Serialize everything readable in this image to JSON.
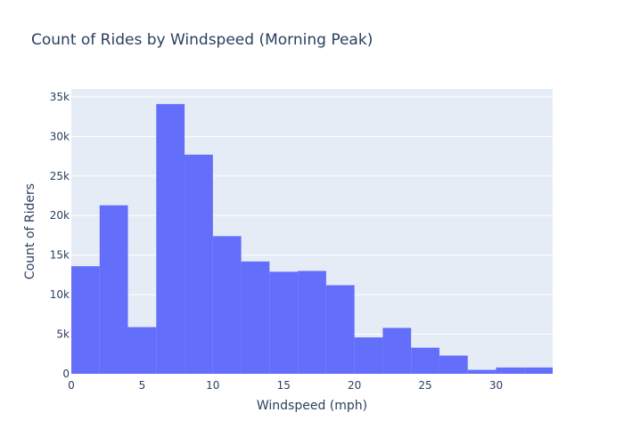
{
  "chart_data": {
    "type": "bar",
    "title": "Count of Rides by Windspeed (Morning Peak)",
    "xlabel": "Windspeed (mph)",
    "ylabel": "Count of Riders",
    "xlim": [
      0,
      34
    ],
    "ylim": [
      0,
      36000
    ],
    "bin_width": 2,
    "grid": true,
    "bins": [
      {
        "start": 0,
        "end": 2,
        "value": 13600
      },
      {
        "start": 2,
        "end": 4,
        "value": 21300
      },
      {
        "start": 4,
        "end": 6,
        "value": 5900
      },
      {
        "start": 6,
        "end": 8,
        "value": 34100
      },
      {
        "start": 8,
        "end": 10,
        "value": 27700
      },
      {
        "start": 10,
        "end": 12,
        "value": 17400
      },
      {
        "start": 12,
        "end": 14,
        "value": 14200
      },
      {
        "start": 14,
        "end": 16,
        "value": 12900
      },
      {
        "start": 16,
        "end": 18,
        "value": 13000
      },
      {
        "start": 18,
        "end": 20,
        "value": 11200
      },
      {
        "start": 20,
        "end": 22,
        "value": 4600
      },
      {
        "start": 22,
        "end": 24,
        "value": 5800
      },
      {
        "start": 24,
        "end": 26,
        "value": 3300
      },
      {
        "start": 26,
        "end": 28,
        "value": 2300
      },
      {
        "start": 28,
        "end": 30,
        "value": 500
      },
      {
        "start": 30,
        "end": 32,
        "value": 800
      },
      {
        "start": 32,
        "end": 34,
        "value": 800
      }
    ],
    "x_ticks": [
      0,
      5,
      10,
      15,
      20,
      25,
      30
    ],
    "x_tick_labels": [
      "0",
      "5",
      "10",
      "15",
      "20",
      "25",
      "30"
    ],
    "y_ticks": [
      0,
      5000,
      10000,
      15000,
      20000,
      25000,
      30000,
      35000
    ],
    "y_tick_labels": [
      "0",
      "5k",
      "10k",
      "15k",
      "20k",
      "25k",
      "30k",
      "35k"
    ],
    "colors": {
      "bar": "#636efa",
      "plot_background": "#e5ecf6",
      "grid": "#ffffff",
      "text": "#2a3f5f"
    }
  }
}
